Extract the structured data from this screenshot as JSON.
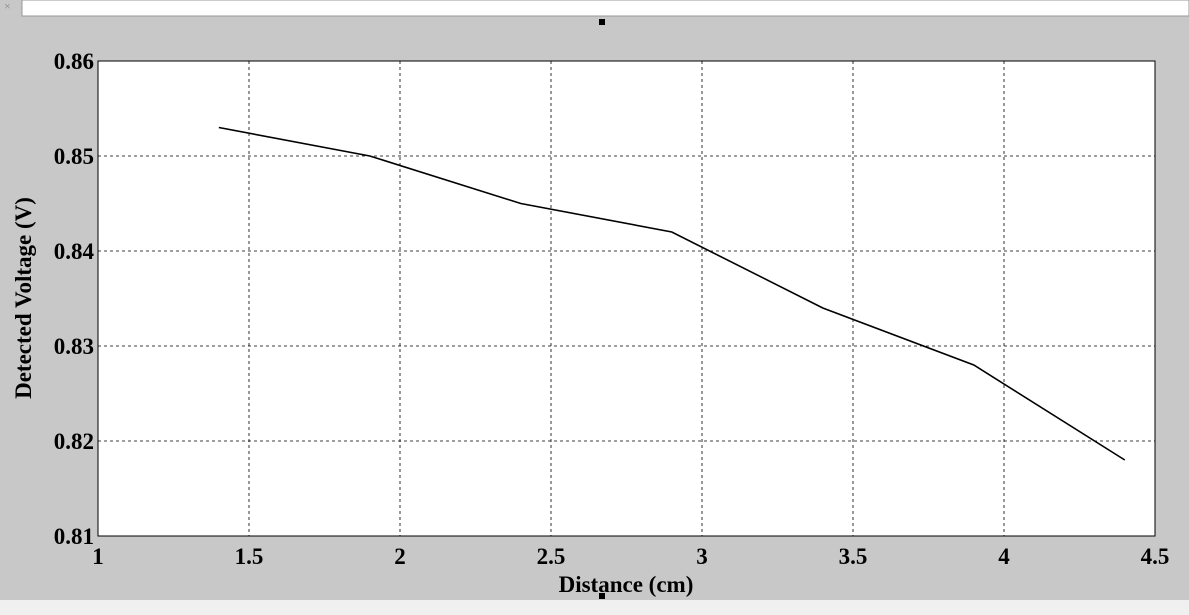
{
  "chart_data": {
    "type": "line",
    "x_label": "Distance (cm)",
    "y_label": "Detected Voltage (V)",
    "x": [
      1.4,
      1.9,
      2.4,
      2.9,
      3.4,
      3.9,
      4.4
    ],
    "series": [
      {
        "color": "#000000",
        "values": [
          0.853,
          0.85,
          0.845,
          0.842,
          0.834,
          0.828,
          0.818
        ]
      }
    ],
    "xlim": [
      1,
      4.5
    ],
    "xticks": [
      1,
      1.5,
      2,
      2.5,
      3,
      3.5,
      4,
      4.5
    ],
    "ylim": [
      0.81,
      0.86
    ],
    "yticks": [
      0.81,
      0.82,
      0.83,
      0.84,
      0.85,
      0.86
    ],
    "grid": true
  }
}
